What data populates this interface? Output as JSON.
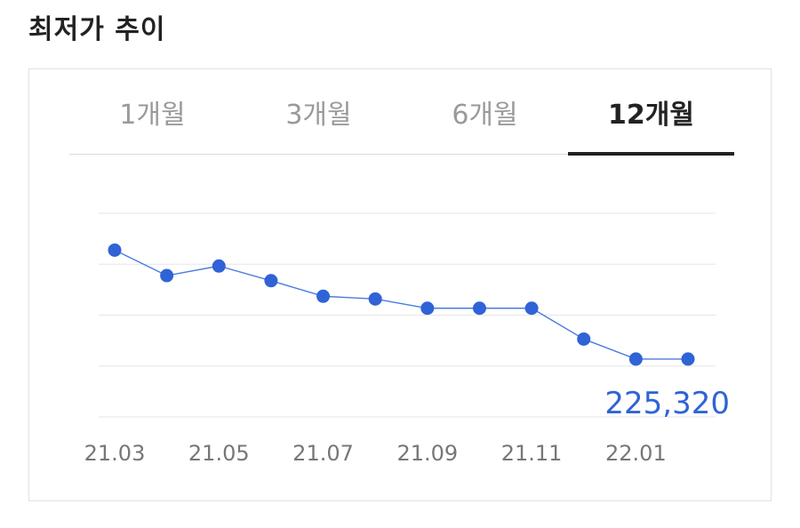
{
  "header": {
    "title": "최저가 추이"
  },
  "tabs": [
    {
      "label": "1개월",
      "active": false
    },
    {
      "label": "3개월",
      "active": false
    },
    {
      "label": "6개월",
      "active": false
    },
    {
      "label": "12개월",
      "active": true
    }
  ],
  "colors": {
    "accent": "#2f63d6",
    "line": "#4a7be0",
    "grid": "#e6e6e6",
    "active_tab": "#222222",
    "inactive_tab": "#9a9a9a"
  },
  "chart_data": {
    "type": "line",
    "x": [
      "21.03",
      "21.04",
      "21.05",
      "21.06",
      "21.07",
      "21.08",
      "21.09",
      "21.10",
      "21.11",
      "21.12",
      "22.01",
      "22.02"
    ],
    "x_tick_labels": [
      "21.03",
      "21.05",
      "21.07",
      "21.09",
      "21.11",
      "22.01"
    ],
    "series": [
      {
        "values": [
          261700,
          253200,
          256400,
          251500,
          246300,
          245400,
          242300,
          242300,
          242300,
          232000,
          225320,
          225320
        ]
      }
    ],
    "last_value_label": "225,320",
    "ylim": [
      206000,
      274000
    ],
    "grid": true,
    "legend": false
  }
}
